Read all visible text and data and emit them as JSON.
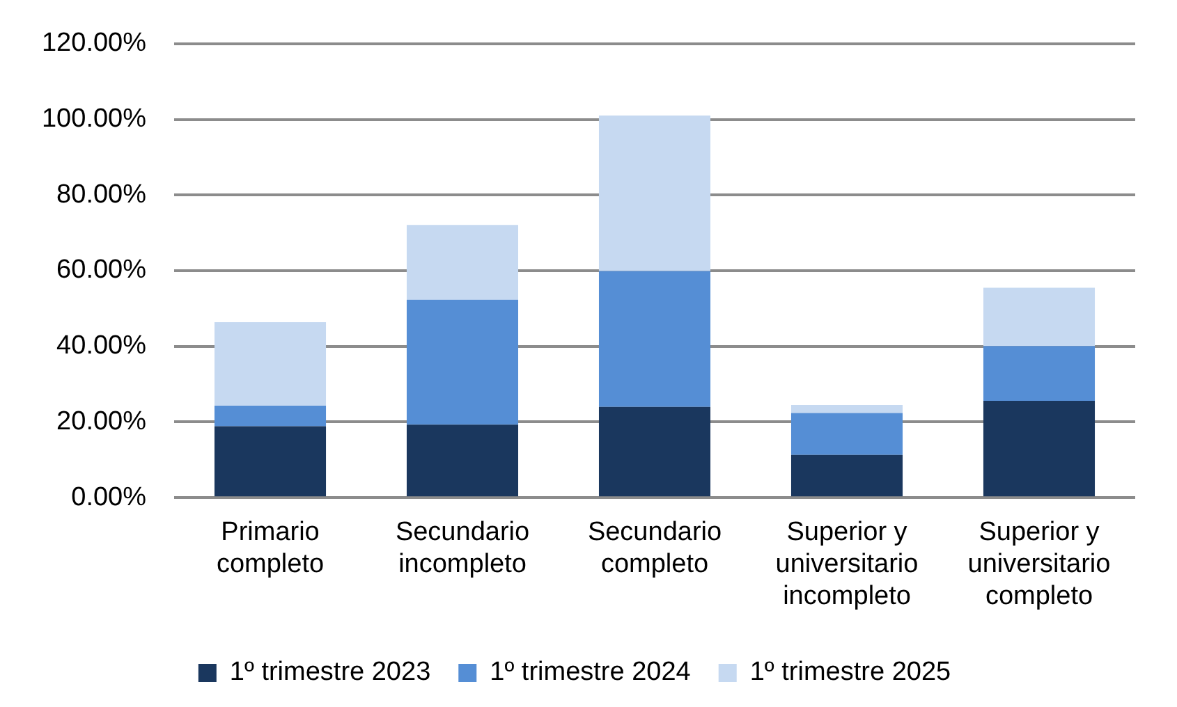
{
  "chart_data": {
    "type": "bar",
    "stacked": true,
    "categories": [
      "Primario completo",
      "Secundario incompleto",
      "Secundario completo",
      "Superior y universitario incompleto",
      "Superior y universitario completo"
    ],
    "series": [
      {
        "name": "1º trimestre 2023",
        "color": "#1a375e",
        "values": [
          18.9,
          19.3,
          24.0,
          11.3,
          25.6
        ]
      },
      {
        "name": "1º trimestre 2024",
        "color": "#558ed5",
        "values": [
          5.4,
          33.0,
          35.9,
          11.1,
          14.5
        ]
      },
      {
        "name": "1º trimestre 2025",
        "color": "#c6d9f1",
        "values": [
          22.1,
          19.8,
          41.1,
          2.1,
          15.4
        ]
      }
    ],
    "ylim": [
      0,
      120
    ],
    "yticks": [
      {
        "value": 0,
        "label": "0.00%"
      },
      {
        "value": 20,
        "label": "20.00%"
      },
      {
        "value": 40,
        "label": "40.00%"
      },
      {
        "value": 60,
        "label": "60.00%"
      },
      {
        "value": 80,
        "label": "80.00%"
      },
      {
        "value": 100,
        "label": "100.00%"
      },
      {
        "value": 120,
        "label": "120.00%"
      }
    ],
    "grid": "y",
    "legend": "bottom"
  }
}
